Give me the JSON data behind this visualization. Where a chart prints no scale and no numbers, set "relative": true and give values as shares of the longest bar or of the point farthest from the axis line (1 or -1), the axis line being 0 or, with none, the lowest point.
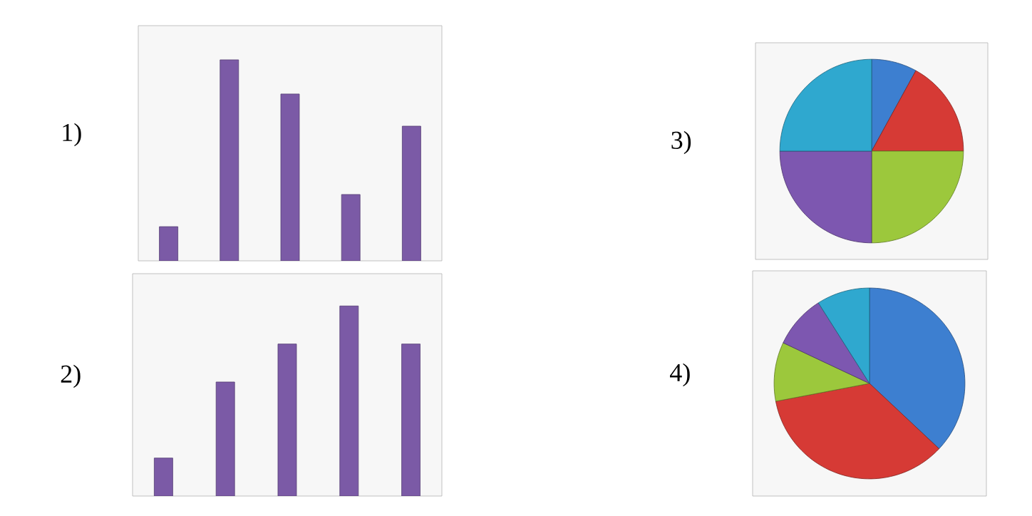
{
  "chart_data": [
    {
      "type": "bar",
      "title": "1)",
      "categories": [
        null,
        null,
        null,
        null,
        null
      ],
      "values": [
        0.17,
        1,
        0.83,
        0.33,
        0.67
      ],
      "color": "#7b5aa6",
      "relative": true
    },
    {
      "type": "bar",
      "title": "2)",
      "categories": [
        null,
        null,
        null,
        null,
        null
      ],
      "values": [
        0.2,
        0.6,
        0.8,
        1,
        0.8
      ],
      "color": "#7b5aa6",
      "relative": true
    },
    {
      "type": "pie",
      "title": "3)",
      "categories": [
        null,
        null,
        null,
        null,
        null
      ],
      "values": [
        8,
        17,
        25,
        25,
        25
      ],
      "colors": [
        "#3d7fd0",
        "#d63a35",
        "#9cc83c",
        "#7d57b0",
        "#2fa8cf"
      ]
    },
    {
      "type": "pie",
      "title": "4)",
      "categories": [
        null,
        null,
        null,
        null,
        null
      ],
      "values": [
        37,
        35,
        10,
        9,
        9
      ],
      "colors": [
        "#3d7fd0",
        "#d63a35",
        "#9cc83c",
        "#7d57b0",
        "#2fa8cf"
      ]
    }
  ]
}
